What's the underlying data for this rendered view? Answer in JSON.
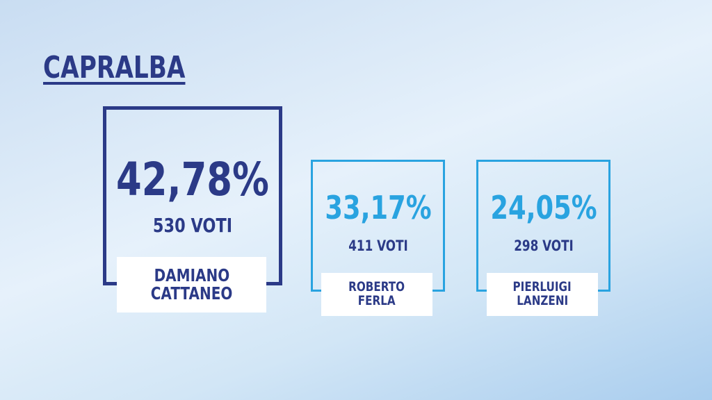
{
  "title": "CAPRALBA",
  "candidates": [
    {
      "percent": "42,78%",
      "votes": "530 VOTI",
      "name": [
        "DAMIANO",
        "CATTANEO"
      ]
    },
    {
      "percent": "33,17%",
      "votes": "411 VOTI",
      "name": [
        "ROBERTO",
        "FERLA"
      ]
    },
    {
      "percent": "24,05%",
      "votes": "298 VOTI",
      "name": [
        "PIERLUIGI",
        "LANZENI"
      ]
    }
  ]
}
